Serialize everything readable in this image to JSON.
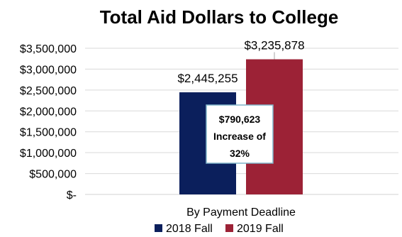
{
  "chart_data": {
    "type": "bar",
    "title": "Total Aid Dollars to College",
    "xlabel": "By Payment Deadline",
    "ylabel": "",
    "ylim": [
      0,
      3500000
    ],
    "y_ticks": [
      {
        "value": 0,
        "label": "$-"
      },
      {
        "value": 500000,
        "label": "$500,000"
      },
      {
        "value": 1000000,
        "label": "$1,000,000"
      },
      {
        "value": 1500000,
        "label": "$1,500,000"
      },
      {
        "value": 2000000,
        "label": "$2,000,000"
      },
      {
        "value": 2500000,
        "label": "$2,500,000"
      },
      {
        "value": 3000000,
        "label": "$3,000,000"
      },
      {
        "value": 3500000,
        "label": "$3,500,000"
      }
    ],
    "categories": [
      "By Payment Deadline"
    ],
    "series": [
      {
        "name": "2018 Fall",
        "values": [
          2445255
        ],
        "data_label": "$2,445,255",
        "color": "#0b1f5c"
      },
      {
        "name": "2019 Fall",
        "values": [
          3235878
        ],
        "data_label": "$3,235,878",
        "color": "#9c2236"
      }
    ],
    "annotation": {
      "lines": [
        "$790,623",
        "Increase of",
        "32%"
      ],
      "border_color": "#7fb3c8"
    },
    "grid": "horizontal",
    "legend_position": "bottom"
  }
}
